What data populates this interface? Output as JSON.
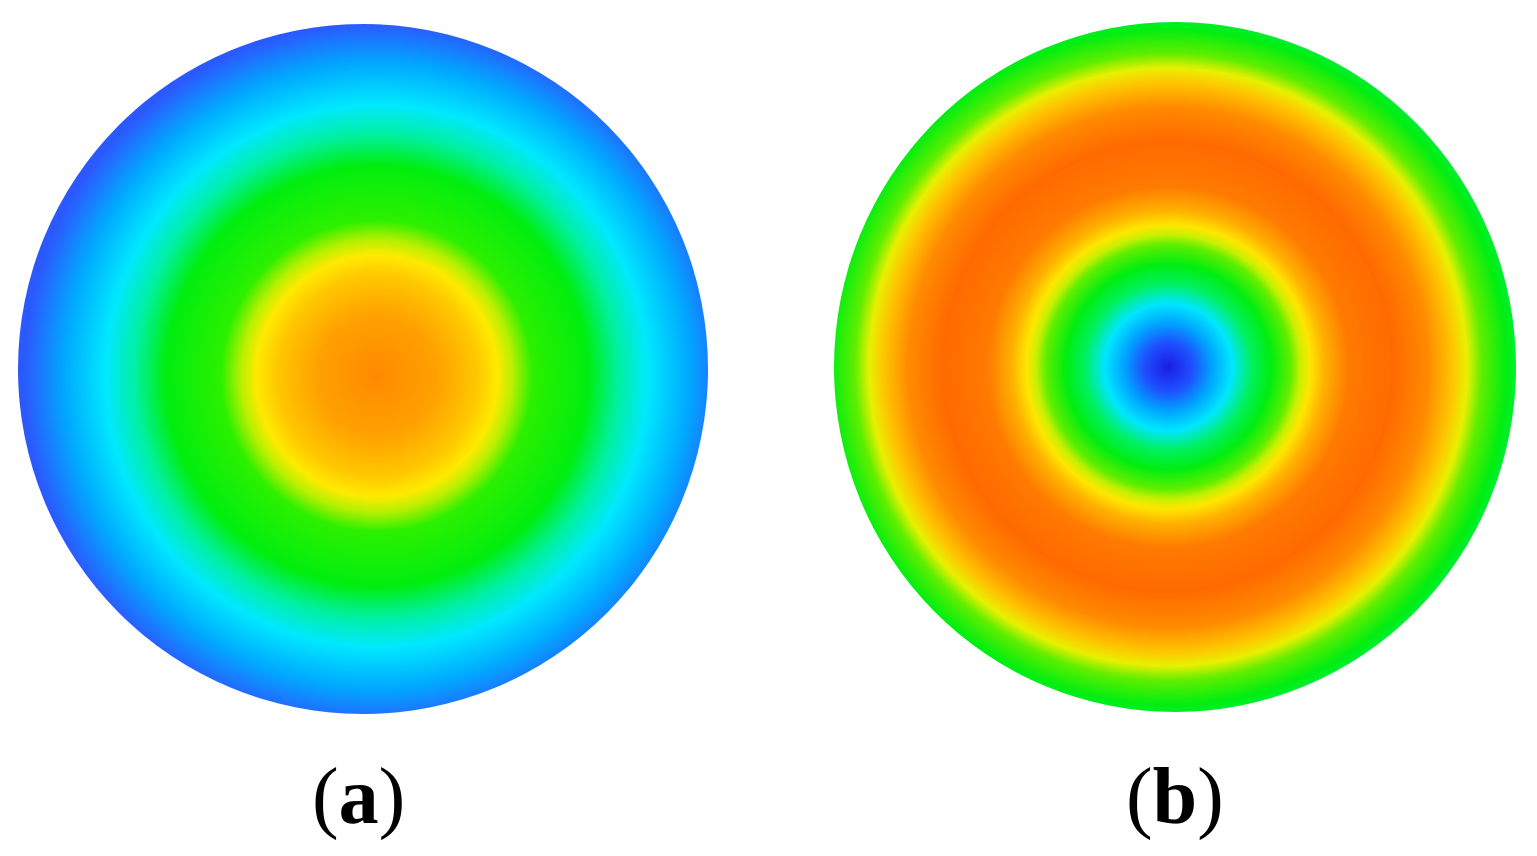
{
  "panels": [
    {
      "id": "a",
      "label_open": "(",
      "label_letter": "a",
      "label_close": ")"
    },
    {
      "id": "b",
      "label_open": "(",
      "label_letter": "b",
      "label_close": ")"
    }
  ],
  "colors": {
    "background": "#ffffff",
    "blue": "#1f1fe6",
    "cyan": "#00e8ff",
    "green": "#00ee10",
    "yellow": "#ffea00",
    "orange": "#ff7a00"
  }
}
